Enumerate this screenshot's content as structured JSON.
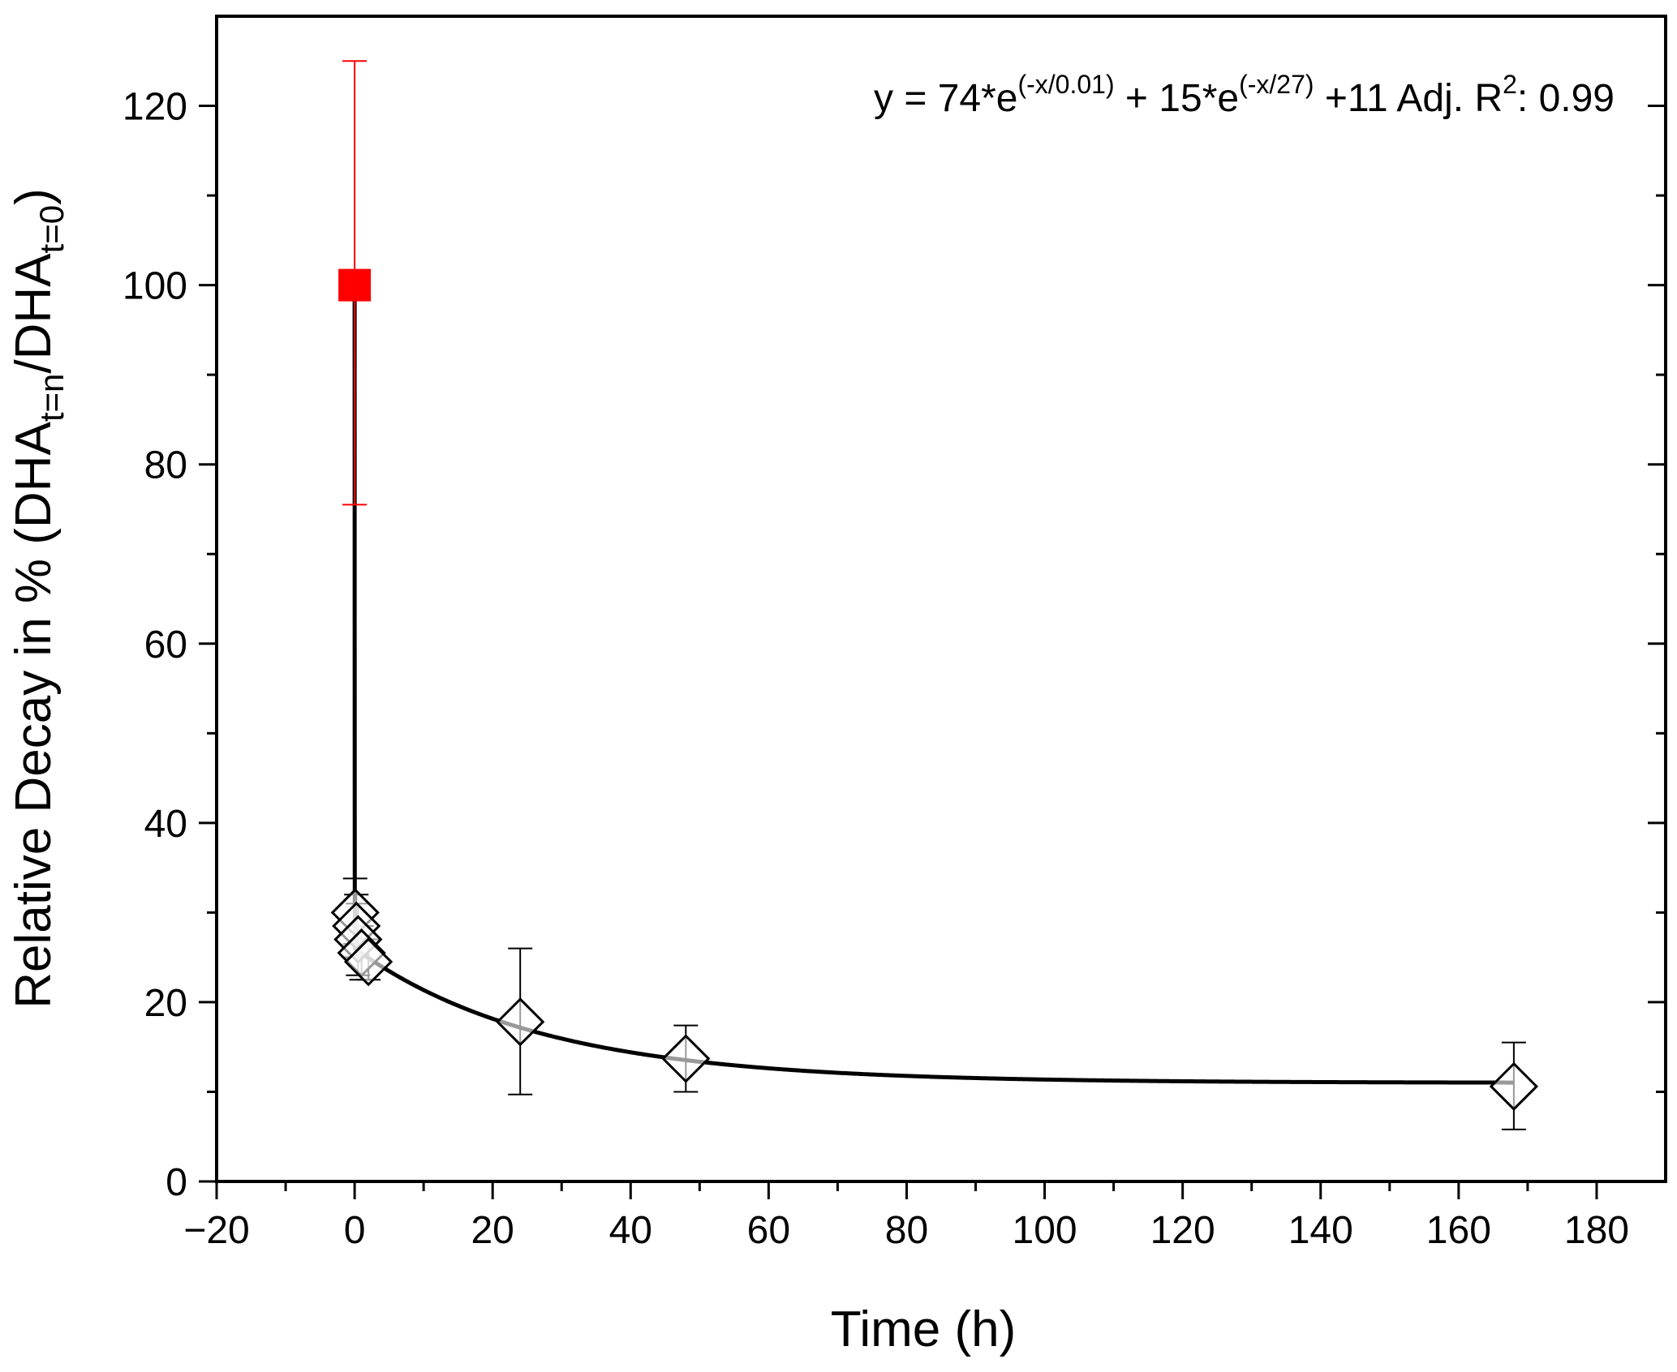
{
  "chart_data": {
    "type": "scatter",
    "xlabel": "Time (h)",
    "ylabel": {
      "main": "Relative Decay in % (DHA",
      "sub1": "t=n",
      "mid": "/DHA",
      "sub2": "t=0",
      "end": ")"
    },
    "xlim": [
      -20,
      190
    ],
    "ylim": [
      0,
      130
    ],
    "x_ticks": [
      -20,
      0,
      20,
      40,
      60,
      80,
      100,
      120,
      140,
      160,
      180
    ],
    "x_tick_labels": [
      "−20",
      "0",
      "20",
      "40",
      "60",
      "80",
      "100",
      "120",
      "140",
      "160",
      "180"
    ],
    "y_ticks": [
      0,
      20,
      40,
      60,
      80,
      100,
      120
    ],
    "y_tick_labels": [
      "0",
      "20",
      "40",
      "60",
      "80",
      "100",
      "120"
    ],
    "x_minor_step": 10,
    "y_minor_step": 10,
    "grid": false,
    "reference_point": {
      "x": 0,
      "y": 100,
      "err_low": 75.5,
      "err_high": 125,
      "marker": "square",
      "color": "#ff0000"
    },
    "points": [
      {
        "x": 0.08,
        "y": 30.0,
        "err_low": 26.5,
        "err_high": 33.8
      },
      {
        "x": 0.25,
        "y": 28.5,
        "err_low": 25.0,
        "err_high": 32.0
      },
      {
        "x": 0.5,
        "y": 27.0,
        "err_low": 23.0,
        "err_high": 31.0
      },
      {
        "x": 1.0,
        "y": 25.5,
        "err_low": 22.5,
        "err_high": 28.5
      },
      {
        "x": 2.0,
        "y": 24.5,
        "err_low": 22.5,
        "err_high": 27.0
      },
      {
        "x": 24,
        "y": 17.8,
        "err_low": 9.7,
        "err_high": 26.0
      },
      {
        "x": 48,
        "y": 13.7,
        "err_low": 10.0,
        "err_high": 17.4
      },
      {
        "x": 168,
        "y": 10.6,
        "err_low": 5.8,
        "err_high": 15.5
      }
    ],
    "point_marker": "diamond",
    "fit": {
      "a1": 74,
      "t1": 0.01,
      "a2": 15,
      "t2": 27,
      "c": 11,
      "x_range": [
        0,
        168
      ]
    },
    "annotation": {
      "p1": "y = 74*e",
      "s1": "(-x/0.01)",
      "p2": " + 15*e",
      "s2": "(-x/27)",
      "p3": " +11 Adj. R",
      "s3": "2",
      "p4": ": 0.99"
    },
    "colors": {
      "reference": "#ff0000",
      "data": "#000000",
      "fit": "#000000"
    }
  }
}
